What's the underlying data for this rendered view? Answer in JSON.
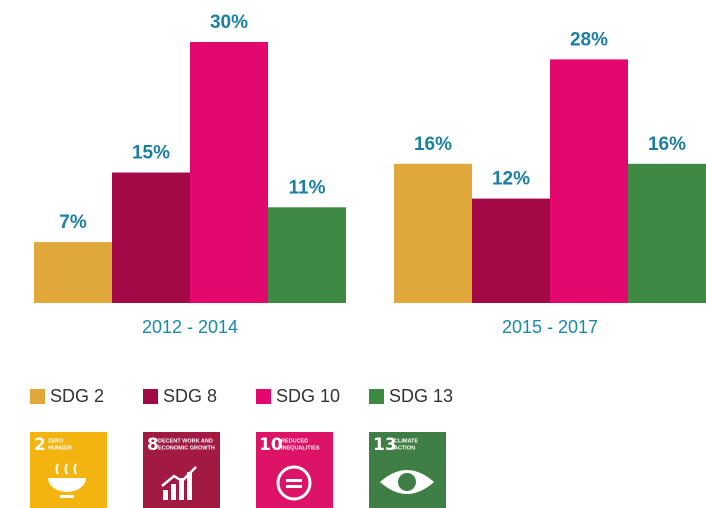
{
  "chart_data": {
    "type": "grouped_bar",
    "categories": [
      "2012 - 2014",
      "2015 - 2017"
    ],
    "series": [
      {
        "name": "SDG 2",
        "color": "#e0a83a",
        "values": [
          7,
          16
        ],
        "value_labels": [
          "7%",
          "16%"
        ]
      },
      {
        "name": "SDG 8",
        "color": "#a30a45",
        "values": [
          15,
          12
        ],
        "value_labels": [
          "15%",
          "12%"
        ]
      },
      {
        "name": "SDG 10",
        "color": "#e2086e",
        "values": [
          30,
          28
        ],
        "value_labels": [
          "30%",
          "28%"
        ]
      },
      {
        "name": "SDG 13",
        "color": "#3e8a42",
        "values": [
          11,
          16
        ],
        "value_labels": [
          "11%",
          "16%"
        ]
      }
    ]
  },
  "sdg_icons": [
    {
      "number": "2",
      "label": [
        "ZERO",
        "HUNGER"
      ]
    },
    {
      "number": "8",
      "label": [
        "DECENT WORK AND",
        "ECONOMIC GROWTH"
      ]
    },
    {
      "number": "10",
      "label": [
        "REDUCED",
        "INEQUALITIES"
      ]
    },
    {
      "number": "13",
      "label": [
        "CLIMATE",
        "ACTION"
      ]
    }
  ]
}
